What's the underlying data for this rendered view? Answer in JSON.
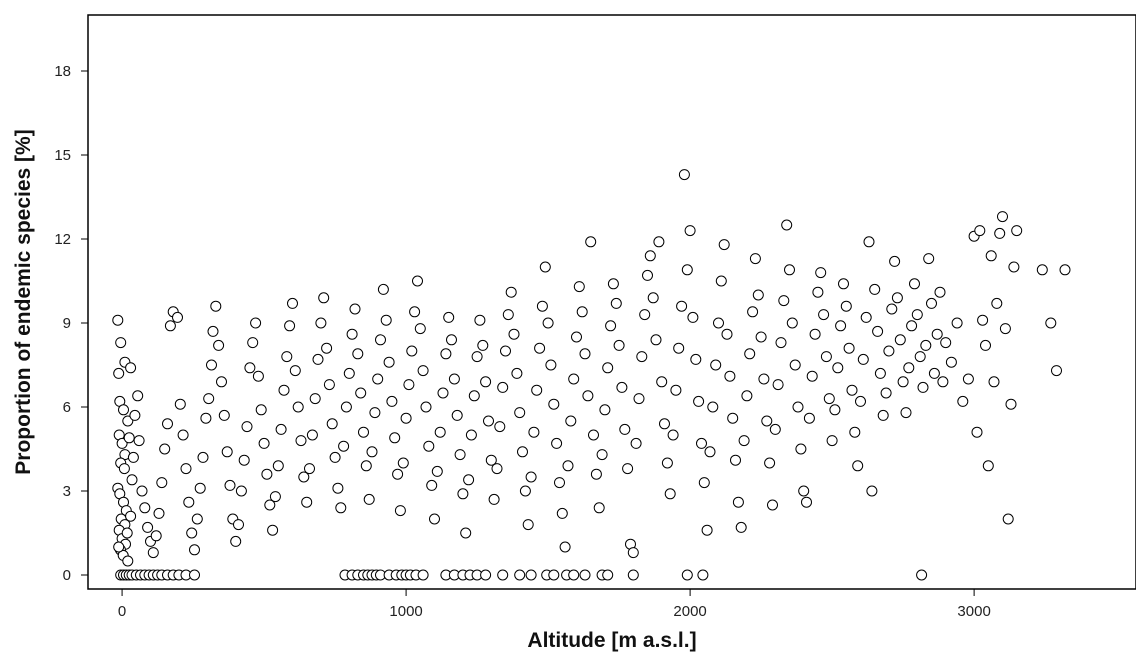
{
  "chart_data": {
    "type": "scatter",
    "title": "",
    "xlabel": "Altitude [m a.s.l.]",
    "ylabel": "Proportion of endemic species [%]",
    "xlim": [
      -120,
      3570
    ],
    "ylim": [
      -0.5,
      20
    ],
    "x_ticks": [
      0,
      1000,
      2000,
      3000
    ],
    "y_ticks": [
      0,
      3,
      6,
      9,
      12,
      15,
      18
    ],
    "x_tick_labels": [
      "0",
      "1000",
      "2000",
      "3000"
    ],
    "y_tick_labels": [
      "0",
      "3",
      "6",
      "9",
      "12",
      "15",
      "18"
    ],
    "grid": false,
    "marker": "open-circle",
    "colors": {
      "marker_edge": "#000000",
      "marker_fill": "#ffffff",
      "frame": "#000000"
    },
    "points": [
      [
        -5,
        0
      ],
      [
        5,
        0
      ],
      [
        15,
        0
      ],
      [
        25,
        0
      ],
      [
        35,
        0
      ],
      [
        50,
        0
      ],
      [
        65,
        0
      ],
      [
        80,
        0
      ],
      [
        95,
        0
      ],
      [
        110,
        0
      ],
      [
        125,
        0
      ],
      [
        140,
        0
      ],
      [
        160,
        0
      ],
      [
        180,
        0
      ],
      [
        200,
        0
      ],
      [
        225,
        0
      ],
      [
        255,
        0
      ],
      [
        785,
        0
      ],
      [
        810,
        0
      ],
      [
        830,
        0
      ],
      [
        850,
        0
      ],
      [
        865,
        0
      ],
      [
        880,
        0
      ],
      [
        895,
        0
      ],
      [
        910,
        0
      ],
      [
        940,
        0
      ],
      [
        965,
        0
      ],
      [
        985,
        0
      ],
      [
        1000,
        0
      ],
      [
        1015,
        0
      ],
      [
        1035,
        0
      ],
      [
        1060,
        0
      ],
      [
        1140,
        0
      ],
      [
        1170,
        0
      ],
      [
        1200,
        0
      ],
      [
        1225,
        0
      ],
      [
        1250,
        0
      ],
      [
        1280,
        0
      ],
      [
        1340,
        0
      ],
      [
        1400,
        0
      ],
      [
        1440,
        0
      ],
      [
        1495,
        0
      ],
      [
        1520,
        0
      ],
      [
        1565,
        0
      ],
      [
        1590,
        0
      ],
      [
        1630,
        0
      ],
      [
        1690,
        0
      ],
      [
        1710,
        0
      ],
      [
        1800,
        0
      ],
      [
        1990,
        0
      ],
      [
        2045,
        0
      ],
      [
        2815,
        0
      ],
      [
        -15,
        9.1
      ],
      [
        -5,
        8.3
      ],
      [
        -12,
        7.2
      ],
      [
        10,
        7.6
      ],
      [
        30,
        7.4
      ],
      [
        -8,
        6.2
      ],
      [
        5,
        5.9
      ],
      [
        20,
        5.5
      ],
      [
        -10,
        5.0
      ],
      [
        0,
        4.7
      ],
      [
        10,
        4.3
      ],
      [
        25,
        4.9
      ],
      [
        -5,
        4.0
      ],
      [
        8,
        3.8
      ],
      [
        -15,
        3.1
      ],
      [
        -8,
        2.9
      ],
      [
        5,
        2.6
      ],
      [
        15,
        2.3
      ],
      [
        -3,
        2.0
      ],
      [
        10,
        1.8
      ],
      [
        -10,
        1.6
      ],
      [
        0,
        1.3
      ],
      [
        12,
        1.1
      ],
      [
        -6,
        0.9
      ],
      [
        4,
        0.7
      ],
      [
        20,
        0.5
      ],
      [
        -12,
        1.0
      ],
      [
        18,
        1.5
      ],
      [
        30,
        2.1
      ],
      [
        35,
        3.4
      ],
      [
        40,
        4.2
      ],
      [
        45,
        5.7
      ],
      [
        55,
        6.4
      ],
      [
        60,
        4.8
      ],
      [
        70,
        3.0
      ],
      [
        80,
        2.4
      ],
      [
        90,
        1.7
      ],
      [
        100,
        1.2
      ],
      [
        110,
        0.8
      ],
      [
        120,
        1.4
      ],
      [
        130,
        2.2
      ],
      [
        140,
        3.3
      ],
      [
        150,
        4.5
      ],
      [
        160,
        5.4
      ],
      [
        170,
        8.9
      ],
      [
        180,
        9.4
      ],
      [
        195,
        9.2
      ],
      [
        205,
        6.1
      ],
      [
        215,
        5.0
      ],
      [
        225,
        3.8
      ],
      [
        235,
        2.6
      ],
      [
        245,
        1.5
      ],
      [
        255,
        0.9
      ],
      [
        265,
        2.0
      ],
      [
        275,
        3.1
      ],
      [
        285,
        4.2
      ],
      [
        295,
        5.6
      ],
      [
        305,
        6.3
      ],
      [
        315,
        7.5
      ],
      [
        320,
        8.7
      ],
      [
        330,
        9.6
      ],
      [
        340,
        8.2
      ],
      [
        350,
        6.9
      ],
      [
        360,
        5.7
      ],
      [
        370,
        4.4
      ],
      [
        380,
        3.2
      ],
      [
        390,
        2.0
      ],
      [
        400,
        1.2
      ],
      [
        410,
        1.8
      ],
      [
        420,
        3.0
      ],
      [
        430,
        4.1
      ],
      [
        440,
        5.3
      ],
      [
        450,
        7.4
      ],
      [
        460,
        8.3
      ],
      [
        470,
        9.0
      ],
      [
        480,
        7.1
      ],
      [
        490,
        5.9
      ],
      [
        500,
        4.7
      ],
      [
        510,
        3.6
      ],
      [
        520,
        2.5
      ],
      [
        530,
        1.6
      ],
      [
        540,
        2.8
      ],
      [
        550,
        3.9
      ],
      [
        560,
        5.2
      ],
      [
        570,
        6.6
      ],
      [
        580,
        7.8
      ],
      [
        590,
        8.9
      ],
      [
        600,
        9.7
      ],
      [
        610,
        7.3
      ],
      [
        620,
        6.0
      ],
      [
        630,
        4.8
      ],
      [
        640,
        3.5
      ],
      [
        650,
        2.6
      ],
      [
        660,
        3.8
      ],
      [
        670,
        5.0
      ],
      [
        680,
        6.3
      ],
      [
        690,
        7.7
      ],
      [
        700,
        9.0
      ],
      [
        710,
        9.9
      ],
      [
        720,
        8.1
      ],
      [
        730,
        6.8
      ],
      [
        740,
        5.4
      ],
      [
        750,
        4.2
      ],
      [
        760,
        3.1
      ],
      [
        770,
        2.4
      ],
      [
        780,
        4.6
      ],
      [
        790,
        6.0
      ],
      [
        800,
        7.2
      ],
      [
        810,
        8.6
      ],
      [
        820,
        9.5
      ],
      [
        830,
        7.9
      ],
      [
        840,
        6.5
      ],
      [
        850,
        5.1
      ],
      [
        860,
        3.9
      ],
      [
        870,
        2.7
      ],
      [
        880,
        4.4
      ],
      [
        890,
        5.8
      ],
      [
        900,
        7.0
      ],
      [
        910,
        8.4
      ],
      [
        920,
        10.2
      ],
      [
        930,
        9.1
      ],
      [
        940,
        7.6
      ],
      [
        950,
        6.2
      ],
      [
        960,
        4.9
      ],
      [
        970,
        3.6
      ],
      [
        980,
        2.3
      ],
      [
        990,
        4.0
      ],
      [
        1000,
        5.6
      ],
      [
        1010,
        6.8
      ],
      [
        1020,
        8.0
      ],
      [
        1030,
        9.4
      ],
      [
        1040,
        10.5
      ],
      [
        1050,
        8.8
      ],
      [
        1060,
        7.3
      ],
      [
        1070,
        6.0
      ],
      [
        1080,
        4.6
      ],
      [
        1090,
        3.2
      ],
      [
        1100,
        2.0
      ],
      [
        1110,
        3.7
      ],
      [
        1120,
        5.1
      ],
      [
        1130,
        6.5
      ],
      [
        1140,
        7.9
      ],
      [
        1150,
        9.2
      ],
      [
        1160,
        8.4
      ],
      [
        1170,
        7.0
      ],
      [
        1180,
        5.7
      ],
      [
        1190,
        4.3
      ],
      [
        1200,
        2.9
      ],
      [
        1210,
        1.5
      ],
      [
        1220,
        3.4
      ],
      [
        1230,
        5.0
      ],
      [
        1240,
        6.4
      ],
      [
        1250,
        7.8
      ],
      [
        1260,
        9.1
      ],
      [
        1270,
        8.2
      ],
      [
        1280,
        6.9
      ],
      [
        1290,
        5.5
      ],
      [
        1300,
        4.1
      ],
      [
        1310,
        2.7
      ],
      [
        1320,
        3.8
      ],
      [
        1330,
        5.3
      ],
      [
        1340,
        6.7
      ],
      [
        1350,
        8.0
      ],
      [
        1360,
        9.3
      ],
      [
        1370,
        10.1
      ],
      [
        1380,
        8.6
      ],
      [
        1390,
        7.2
      ],
      [
        1400,
        5.8
      ],
      [
        1410,
        4.4
      ],
      [
        1420,
        3.0
      ],
      [
        1430,
        1.8
      ],
      [
        1440,
        3.5
      ],
      [
        1450,
        5.1
      ],
      [
        1460,
        6.6
      ],
      [
        1470,
        8.1
      ],
      [
        1480,
        9.6
      ],
      [
        1490,
        11.0
      ],
      [
        1500,
        9.0
      ],
      [
        1510,
        7.5
      ],
      [
        1520,
        6.1
      ],
      [
        1530,
        4.7
      ],
      [
        1540,
        3.3
      ],
      [
        1550,
        2.2
      ],
      [
        1560,
        1.0
      ],
      [
        1570,
        3.9
      ],
      [
        1580,
        5.5
      ],
      [
        1590,
        7.0
      ],
      [
        1600,
        8.5
      ],
      [
        1610,
        10.3
      ],
      [
        1620,
        9.4
      ],
      [
        1630,
        7.9
      ],
      [
        1640,
        6.4
      ],
      [
        1650,
        11.9
      ],
      [
        1660,
        5.0
      ],
      [
        1670,
        3.6
      ],
      [
        1680,
        2.4
      ],
      [
        1690,
        4.3
      ],
      [
        1700,
        5.9
      ],
      [
        1710,
        7.4
      ],
      [
        1720,
        8.9
      ],
      [
        1730,
        10.4
      ],
      [
        1740,
        9.7
      ],
      [
        1750,
        8.2
      ],
      [
        1760,
        6.7
      ],
      [
        1770,
        5.2
      ],
      [
        1780,
        3.8
      ],
      [
        1790,
        1.1
      ],
      [
        1800,
        0.8
      ],
      [
        1810,
        4.7
      ],
      [
        1820,
        6.3
      ],
      [
        1830,
        7.8
      ],
      [
        1840,
        9.3
      ],
      [
        1850,
        10.7
      ],
      [
        1860,
        11.4
      ],
      [
        1870,
        9.9
      ],
      [
        1880,
        8.4
      ],
      [
        1890,
        11.9
      ],
      [
        1900,
        6.9
      ],
      [
        1910,
        5.4
      ],
      [
        1920,
        4.0
      ],
      [
        1930,
        2.9
      ],
      [
        1940,
        5.0
      ],
      [
        1950,
        6.6
      ],
      [
        1960,
        8.1
      ],
      [
        1970,
        9.6
      ],
      [
        1980,
        14.3
      ],
      [
        1990,
        10.9
      ],
      [
        2000,
        12.3
      ],
      [
        2010,
        9.2
      ],
      [
        2020,
        7.7
      ],
      [
        2030,
        6.2
      ],
      [
        2040,
        4.7
      ],
      [
        2050,
        3.3
      ],
      [
        2060,
        1.6
      ],
      [
        2070,
        4.4
      ],
      [
        2080,
        6.0
      ],
      [
        2090,
        7.5
      ],
      [
        2100,
        9.0
      ],
      [
        2110,
        10.5
      ],
      [
        2120,
        11.8
      ],
      [
        2130,
        8.6
      ],
      [
        2140,
        7.1
      ],
      [
        2150,
        5.6
      ],
      [
        2160,
        4.1
      ],
      [
        2170,
        2.6
      ],
      [
        2180,
        1.7
      ],
      [
        2190,
        4.8
      ],
      [
        2200,
        6.4
      ],
      [
        2210,
        7.9
      ],
      [
        2220,
        9.4
      ],
      [
        2230,
        11.3
      ],
      [
        2240,
        10.0
      ],
      [
        2250,
        8.5
      ],
      [
        2260,
        7.0
      ],
      [
        2270,
        5.5
      ],
      [
        2280,
        4.0
      ],
      [
        2290,
        2.5
      ],
      [
        2300,
        5.2
      ],
      [
        2310,
        6.8
      ],
      [
        2320,
        8.3
      ],
      [
        2330,
        9.8
      ],
      [
        2340,
        12.5
      ],
      [
        2350,
        10.9
      ],
      [
        2360,
        9.0
      ],
      [
        2370,
        7.5
      ],
      [
        2380,
        6.0
      ],
      [
        2390,
        4.5
      ],
      [
        2400,
        3.0
      ],
      [
        2410,
        2.6
      ],
      [
        2420,
        5.6
      ],
      [
        2430,
        7.1
      ],
      [
        2440,
        8.6
      ],
      [
        2450,
        10.1
      ],
      [
        2460,
        10.8
      ],
      [
        2470,
        9.3
      ],
      [
        2480,
        7.8
      ],
      [
        2490,
        6.3
      ],
      [
        2500,
        4.8
      ],
      [
        2510,
        5.9
      ],
      [
        2520,
        7.4
      ],
      [
        2530,
        8.9
      ],
      [
        2540,
        10.4
      ],
      [
        2550,
        9.6
      ],
      [
        2560,
        8.1
      ],
      [
        2570,
        6.6
      ],
      [
        2580,
        5.1
      ],
      [
        2590,
        3.9
      ],
      [
        2600,
        6.2
      ],
      [
        2610,
        7.7
      ],
      [
        2620,
        9.2
      ],
      [
        2630,
        11.9
      ],
      [
        2640,
        3.0
      ],
      [
        2650,
        10.2
      ],
      [
        2660,
        8.7
      ],
      [
        2670,
        7.2
      ],
      [
        2680,
        5.7
      ],
      [
        2690,
        6.5
      ],
      [
        2700,
        8.0
      ],
      [
        2710,
        9.5
      ],
      [
        2720,
        11.2
      ],
      [
        2730,
        9.9
      ],
      [
        2740,
        8.4
      ],
      [
        2750,
        6.9
      ],
      [
        2760,
        5.8
      ],
      [
        2770,
        7.4
      ],
      [
        2780,
        8.9
      ],
      [
        2790,
        10.4
      ],
      [
        2800,
        9.3
      ],
      [
        2810,
        7.8
      ],
      [
        2820,
        6.7
      ],
      [
        2830,
        8.2
      ],
      [
        2840,
        11.3
      ],
      [
        2850,
        9.7
      ],
      [
        2860,
        7.2
      ],
      [
        2870,
        8.6
      ],
      [
        2880,
        10.1
      ],
      [
        2890,
        6.9
      ],
      [
        2900,
        8.3
      ],
      [
        2920,
        7.6
      ],
      [
        2940,
        9.0
      ],
      [
        2960,
        6.2
      ],
      [
        2980,
        7.0
      ],
      [
        3000,
        12.1
      ],
      [
        3010,
        5.1
      ],
      [
        3020,
        12.3
      ],
      [
        3030,
        9.1
      ],
      [
        3040,
        8.2
      ],
      [
        3050,
        3.9
      ],
      [
        3060,
        11.4
      ],
      [
        3070,
        6.9
      ],
      [
        3080,
        9.7
      ],
      [
        3090,
        12.2
      ],
      [
        3100,
        12.8
      ],
      [
        3110,
        8.8
      ],
      [
        3120,
        2.0
      ],
      [
        3130,
        6.1
      ],
      [
        3140,
        11.0
      ],
      [
        3150,
        12.3
      ],
      [
        3240,
        10.9
      ],
      [
        3270,
        9.0
      ],
      [
        3290,
        7.3
      ],
      [
        3320,
        10.9
      ]
    ]
  }
}
